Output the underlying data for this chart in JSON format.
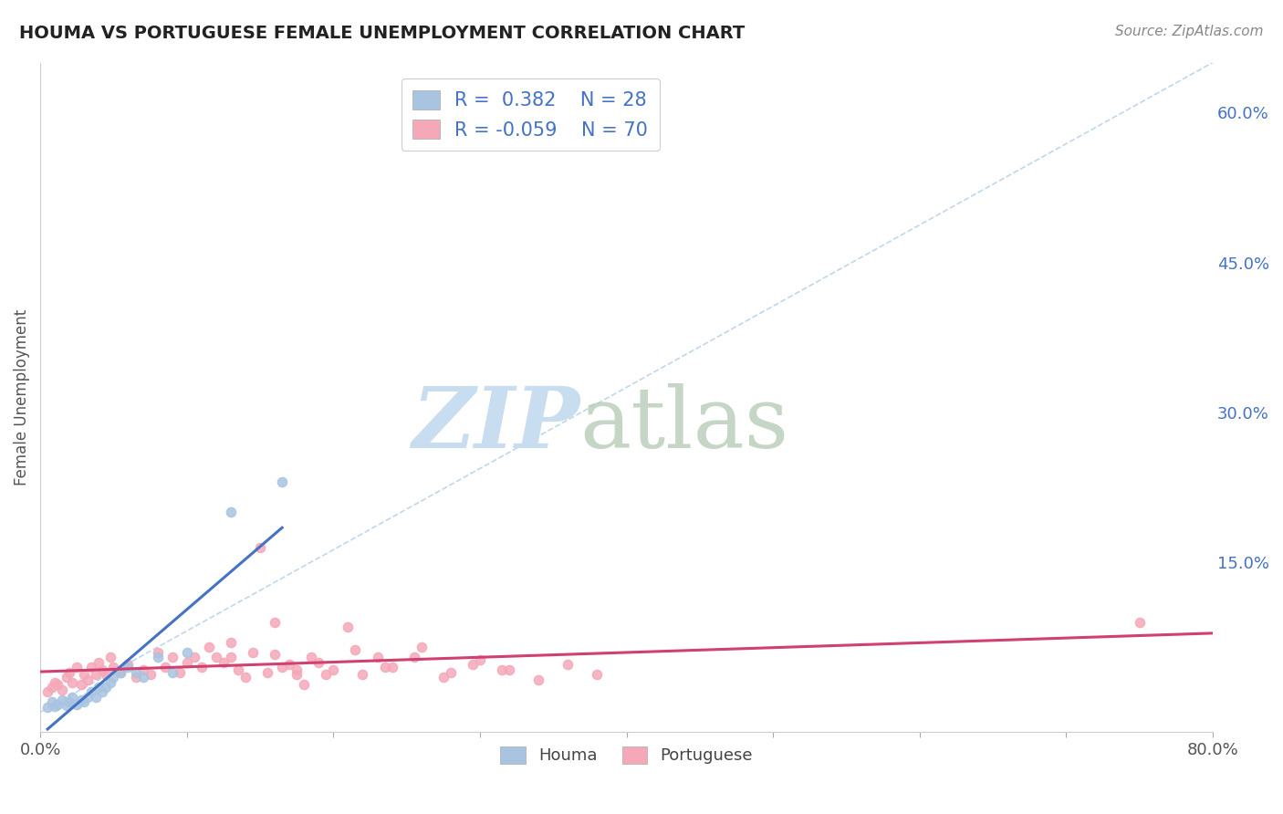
{
  "title": "HOUMA VS PORTUGUESE FEMALE UNEMPLOYMENT CORRELATION CHART",
  "source_text": "Source: ZipAtlas.com",
  "ylabel": "Female Unemployment",
  "legend_houma_R": "0.382",
  "legend_houma_N": "28",
  "legend_portuguese_R": "-0.059",
  "legend_portuguese_N": "70",
  "houma_color": "#a8c4e0",
  "portuguese_color": "#f4a8b8",
  "houma_line_color": "#4472c4",
  "portuguese_line_color": "#d04070",
  "legend_text_color": "#4472c4",
  "title_color": "#222222",
  "background_color": "#ffffff",
  "grid_color": "#cccccc",
  "xlim": [
    0.0,
    0.8
  ],
  "ylim": [
    -0.02,
    0.65
  ],
  "y_ticks_right": [
    0.0,
    0.15,
    0.3,
    0.45,
    0.6
  ],
  "houma_x": [
    0.005,
    0.008,
    0.01,
    0.012,
    0.015,
    0.018,
    0.02,
    0.022,
    0.025,
    0.028,
    0.03,
    0.032,
    0.035,
    0.038,
    0.04,
    0.042,
    0.045,
    0.048,
    0.05,
    0.055,
    0.06,
    0.065,
    0.07,
    0.08,
    0.09,
    0.1,
    0.13,
    0.165
  ],
  "houma_y": [
    0.005,
    0.01,
    0.006,
    0.008,
    0.012,
    0.007,
    0.01,
    0.015,
    0.008,
    0.012,
    0.01,
    0.015,
    0.02,
    0.015,
    0.025,
    0.02,
    0.025,
    0.03,
    0.035,
    0.04,
    0.045,
    0.04,
    0.035,
    0.055,
    0.04,
    0.06,
    0.2,
    0.23
  ],
  "portuguese_x": [
    0.005,
    0.008,
    0.01,
    0.012,
    0.015,
    0.018,
    0.02,
    0.022,
    0.025,
    0.028,
    0.03,
    0.032,
    0.035,
    0.038,
    0.04,
    0.042,
    0.045,
    0.048,
    0.05,
    0.055,
    0.06,
    0.065,
    0.07,
    0.075,
    0.08,
    0.085,
    0.09,
    0.095,
    0.1,
    0.105,
    0.11,
    0.115,
    0.12,
    0.125,
    0.13,
    0.135,
    0.14,
    0.15,
    0.16,
    0.17,
    0.18,
    0.19,
    0.2,
    0.21,
    0.22,
    0.23,
    0.24,
    0.26,
    0.28,
    0.3,
    0.32,
    0.34,
    0.36,
    0.38,
    0.16,
    0.175,
    0.195,
    0.215,
    0.235,
    0.255,
    0.275,
    0.295,
    0.315,
    0.13,
    0.145,
    0.155,
    0.165,
    0.175,
    0.185,
    0.75
  ],
  "portuguese_y": [
    0.02,
    0.025,
    0.03,
    0.028,
    0.022,
    0.035,
    0.04,
    0.03,
    0.045,
    0.028,
    0.038,
    0.032,
    0.045,
    0.038,
    0.05,
    0.042,
    0.038,
    0.055,
    0.045,
    0.04,
    0.048,
    0.035,
    0.042,
    0.038,
    0.06,
    0.045,
    0.055,
    0.04,
    0.05,
    0.055,
    0.045,
    0.065,
    0.055,
    0.05,
    0.07,
    0.042,
    0.035,
    0.165,
    0.09,
    0.048,
    0.028,
    0.05,
    0.042,
    0.085,
    0.038,
    0.055,
    0.045,
    0.065,
    0.04,
    0.052,
    0.042,
    0.032,
    0.048,
    0.038,
    0.058,
    0.042,
    0.038,
    0.062,
    0.045,
    0.055,
    0.035,
    0.048,
    0.042,
    0.055,
    0.06,
    0.04,
    0.045,
    0.038,
    0.055,
    0.09
  ]
}
